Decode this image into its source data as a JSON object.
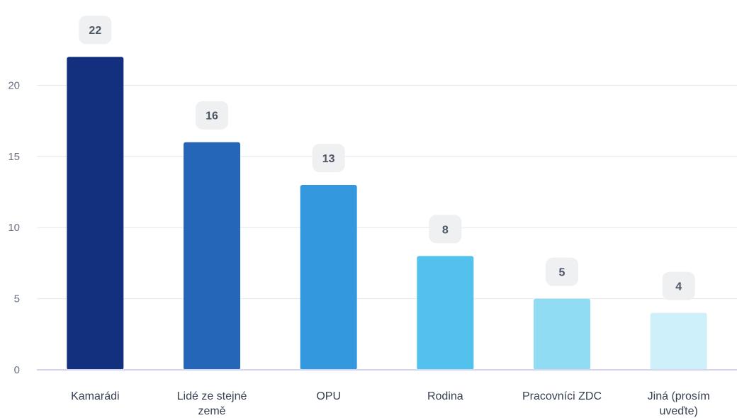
{
  "chart_data": {
    "type": "bar",
    "categories": [
      "Kamarádi",
      "Lidé ze stejné země",
      "OPU",
      "Rodina",
      "Pracovníci ZDC",
      "Jiná (prosím uveďte)"
    ],
    "category_lines": [
      [
        "Kamarádi"
      ],
      [
        "Lidé ze stejné",
        "země"
      ],
      [
        "OPU"
      ],
      [
        "Rodina"
      ],
      [
        "Pracovníci ZDC"
      ],
      [
        "Jiná (prosím",
        "uveďte)"
      ]
    ],
    "values": [
      22,
      16,
      13,
      8,
      5,
      4
    ],
    "data_labels": [
      "22",
      "16",
      "13",
      "8",
      "5",
      "4"
    ],
    "colors": [
      "#13307f",
      "#2566b8",
      "#3498de",
      "#52c1ec",
      "#90dcf3",
      "#cdf0fa"
    ],
    "ylim": [
      0,
      25
    ],
    "yticks": [
      0,
      5,
      10,
      15,
      20
    ],
    "grid": true,
    "title": "",
    "xlabel": "",
    "ylabel": ""
  }
}
